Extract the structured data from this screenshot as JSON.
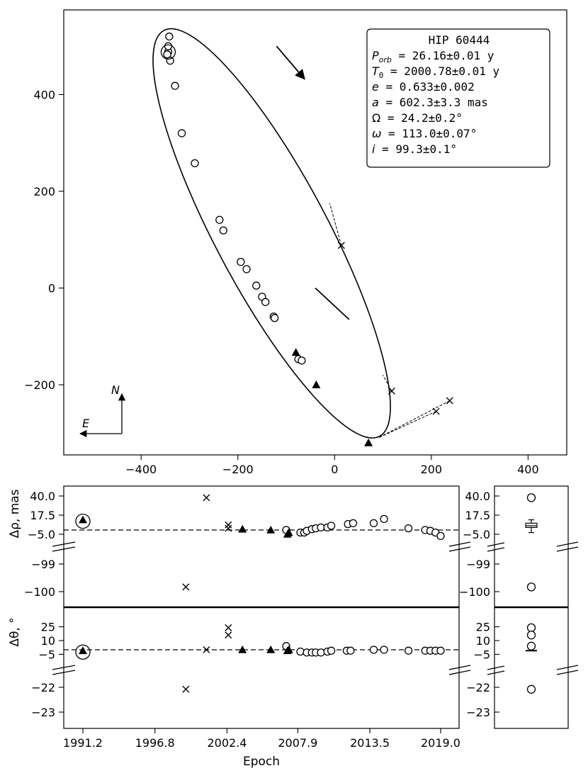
{
  "chart_data": [
    {
      "type": "scatter",
      "panel": "orbit",
      "title": "",
      "xlabel": "",
      "ylabel": "",
      "xlim": [
        -560,
        480
      ],
      "ylim": [
        -345,
        575
      ],
      "x_inverted": false,
      "xticks": [
        -400,
        -200,
        0,
        200,
        400
      ],
      "yticks": [
        -200,
        0,
        200,
        400
      ],
      "xtick_labels": [
        "−400",
        "−200",
        "0",
        "200",
        "400"
      ],
      "ytick_labels": [
        "−200",
        "0",
        "200",
        "400"
      ],
      "orbit_ellipse": {
        "center": [
          -130,
          113
        ],
        "semi_major": 475,
        "semi_minor": 116,
        "rotation_deg": 62
      },
      "direction_arrow": {
        "from": [
          -120,
          500
        ],
        "to": [
          -62,
          432
        ]
      },
      "node_line": {
        "from": [
          -40,
          0
        ],
        "to": [
          30,
          -65
        ]
      },
      "circles": [
        [
          -344,
          488
        ],
        [
          -342,
          520
        ],
        [
          -344,
          500
        ],
        [
          -346,
          483
        ],
        [
          -340,
          470
        ],
        [
          -330,
          418
        ],
        [
          -316,
          320
        ],
        [
          -289,
          258
        ],
        [
          -238,
          141
        ],
        [
          -230,
          119
        ],
        [
          -194,
          54
        ],
        [
          -182,
          39
        ],
        [
          -162,
          5
        ],
        [
          -150,
          -18
        ],
        [
          -143,
          -29
        ],
        [
          -126,
          -59
        ],
        [
          -124,
          -62
        ],
        [
          -75,
          -147
        ],
        [
          -68,
          -150
        ]
      ],
      "triangles": [
        [
          -80,
          -133
        ],
        [
          -38,
          -200
        ],
        [
          70,
          -320
        ]
      ],
      "crosses": [
        [
          14,
          88
        ],
        [
          118,
          -213
        ],
        [
          210,
          -255
        ],
        [
          238,
          -233
        ]
      ],
      "residual_lines": [
        [
          [
            14,
            88
          ],
          [
            -10,
            175
          ]
        ],
        [
          [
            118,
            -213
          ],
          [
            100,
            -180
          ]
        ],
        [
          [
            210,
            -255
          ],
          [
            90,
            -310
          ]
        ],
        [
          [
            238,
            -233
          ],
          [
            90,
            -310
          ]
        ]
      ],
      "highlighted": [
        -344,
        488
      ],
      "legend_box": {
        "lines": [
          "HIP 60444",
          "P_orb = 26.16±0.01 y",
          "T_0  = 2000.78±0.01 y",
          "e    = 0.633±0.002",
          "a    = 602.3±3.3 mas",
          "Ω    = 24.2±0.2°",
          "ω    = 113.0±0.07°",
          "i    = 99.3±0.1°"
        ]
      },
      "compass": {
        "north_label": "N",
        "east_label": "E"
      }
    },
    {
      "type": "scatter",
      "panel": "delta_rho",
      "ylabel": "Δρ, mas",
      "xlim": [
        1990.5,
        2019.8
      ],
      "yticks_upper": [
        "40.0",
        "17.5",
        "−5.0"
      ],
      "yticks_lower": [
        "−99",
        "−100"
      ],
      "circles": [
        [
          2007.0,
          0
        ],
        [
          2008.1,
          -3
        ],
        [
          2008.4,
          -3
        ],
        [
          2008.6,
          -1
        ],
        [
          2009.0,
          1
        ],
        [
          2009.3,
          2
        ],
        [
          2009.7,
          3
        ],
        [
          2010.2,
          3
        ],
        [
          2010.5,
          5
        ],
        [
          2011.8,
          7
        ],
        [
          2012.2,
          8
        ],
        [
          2013.8,
          8
        ],
        [
          2014.6,
          13
        ],
        [
          2016.5,
          2
        ],
        [
          2017.8,
          0
        ],
        [
          2018.2,
          -1
        ],
        [
          2018.6,
          -3
        ],
        [
          2019.0,
          -7
        ]
      ],
      "triangles": [
        [
          1991.2,
          12
        ],
        [
          2003.6,
          1
        ],
        [
          2005.8,
          0
        ],
        [
          2007.1,
          -5
        ],
        [
          2007.2,
          -3
        ]
      ],
      "crosses": [
        [
          1999.2,
          -99.83
        ],
        [
          2000.8,
          38
        ],
        [
          2002.5,
          6
        ],
        [
          2002.5,
          2
        ]
      ],
      "highlighted": [
        1991.2,
        12
      ]
    },
    {
      "type": "scatter",
      "panel": "delta_theta",
      "ylabel": "Δθ, °",
      "xlabel": "Epoch",
      "xticks": [
        "1991.2",
        "1996.8",
        "2002.4",
        "2007.9",
        "2013.5",
        "2019.0"
      ],
      "yticks_upper": [
        "25",
        "10",
        "−5"
      ],
      "yticks_lower": [
        "−22",
        "−23"
      ],
      "circles": [
        [
          2007.0,
          4
        ],
        [
          2008.1,
          -2
        ],
        [
          2008.6,
          -3
        ],
        [
          2009.0,
          -3
        ],
        [
          2009.3,
          -3
        ],
        [
          2009.7,
          -3
        ],
        [
          2010.2,
          -2
        ],
        [
          2010.5,
          -1
        ],
        [
          2011.7,
          -1
        ],
        [
          2012.0,
          -1
        ],
        [
          2013.8,
          0
        ],
        [
          2014.6,
          0
        ],
        [
          2016.5,
          -1
        ],
        [
          2017.8,
          -1
        ],
        [
          2018.2,
          -1
        ],
        [
          2018.6,
          -1
        ],
        [
          2019.0,
          -1
        ]
      ],
      "triangles": [
        [
          1991.2,
          -1
        ],
        [
          2003.6,
          0
        ],
        [
          2005.8,
          0
        ],
        [
          2007.1,
          -1
        ],
        [
          2007.2,
          0
        ]
      ],
      "crosses": [
        [
          1999.2,
          -22.08
        ],
        [
          2000.8,
          0
        ],
        [
          2002.5,
          24
        ],
        [
          2002.5,
          16
        ]
      ],
      "highlighted": [
        1991.2,
        -1
      ]
    },
    {
      "type": "scatter",
      "panel": "distribution",
      "rho_circles": [
        38,
        -99.83
      ],
      "rho_box": {
        "q1": 3,
        "median": 5,
        "q3": 8,
        "whisker_low": -3,
        "whisker_high": 12
      },
      "theta_circles": [
        24,
        16,
        4,
        -22.08
      ],
      "theta_median": -1
    }
  ]
}
